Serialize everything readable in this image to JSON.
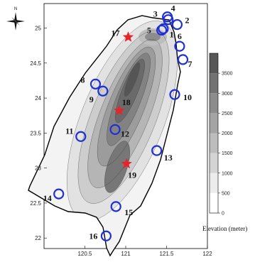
{
  "north_label": "N",
  "colors": {
    "coast": "#000000",
    "site_circle": "#1f2fd6",
    "star": "#e8232a",
    "elevation_shades": [
      "#ffffff",
      "#ececec",
      "#d4d4d4",
      "#bdbdbd",
      "#a4a4a4",
      "#8c8c8c",
      "#727272",
      "#575757"
    ]
  },
  "chart_data": {
    "type": "map",
    "x_ticks": [
      "120.5",
      "121",
      "121.5",
      "122"
    ],
    "y_ticks": [
      "25",
      "24.5",
      "24",
      "23.5",
      "23",
      "22.5",
      "22"
    ],
    "xlim": [
      120,
      122
    ],
    "ylim": [
      21.85,
      25.35
    ],
    "sites": [
      {
        "label": "1",
        "lon": 121.44,
        "lat": 24.97
      },
      {
        "label": "2",
        "lon": 121.63,
        "lat": 25.05
      },
      {
        "label": "3",
        "lon": 121.52,
        "lat": 25.12
      },
      {
        "label": "4",
        "lon": 121.51,
        "lat": 25.16
      },
      {
        "label": "5",
        "lon": 121.46,
        "lat": 24.99
      },
      {
        "label": "6",
        "lon": 121.66,
        "lat": 24.74
      },
      {
        "label": "7",
        "lon": 121.7,
        "lat": 24.55
      },
      {
        "label": "8",
        "lon": 120.63,
        "lat": 24.2
      },
      {
        "label": "9",
        "lon": 120.72,
        "lat": 24.1
      },
      {
        "label": "10",
        "lon": 121.6,
        "lat": 24.05
      },
      {
        "label": "11",
        "lon": 120.45,
        "lat": 23.45
      },
      {
        "label": "12",
        "lon": 120.87,
        "lat": 23.55
      },
      {
        "label": "13",
        "lon": 121.38,
        "lat": 23.25
      },
      {
        "label": "14",
        "lon": 120.18,
        "lat": 22.63
      },
      {
        "label": "15",
        "lon": 120.88,
        "lat": 22.45
      },
      {
        "label": "16",
        "lon": 120.76,
        "lat": 22.03
      }
    ],
    "stars": [
      {
        "label": "17",
        "lon": 121.03,
        "lat": 24.87
      },
      {
        "label": "18",
        "lon": 120.92,
        "lat": 23.82
      },
      {
        "label": "19",
        "lon": 121.01,
        "lat": 23.06
      }
    ],
    "colorbar": {
      "title": "Elevation (meter)",
      "ticks": [
        "0",
        "500",
        "1000",
        "1500",
        "2000",
        "2500",
        "3000",
        "3500"
      ],
      "range": [
        0,
        4000
      ]
    }
  }
}
